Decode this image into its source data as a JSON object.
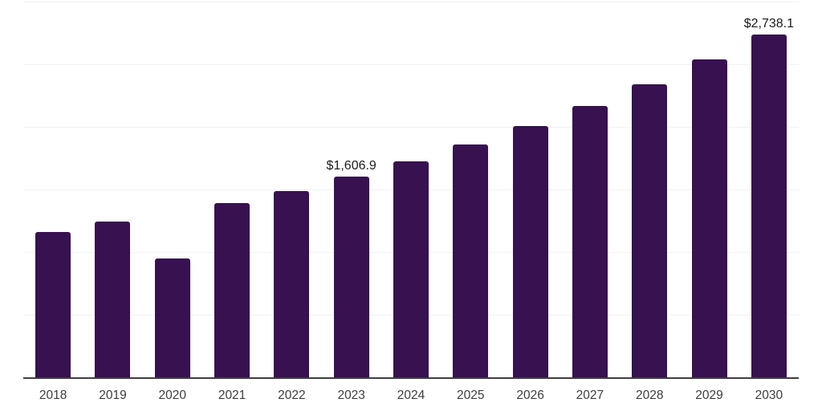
{
  "chart": {
    "background": "#FFFFFF",
    "bar_color": "#371150",
    "axis_color": "#3F3F3F",
    "gridline_color": "#F2F2F2",
    "tick_label_color": "#3D3D3D",
    "value_label_color": "#1C1C1C"
  },
  "chart_data": {
    "type": "bar",
    "title": "",
    "xlabel": "",
    "ylabel": "",
    "categories": [
      "2018",
      "2019",
      "2020",
      "2021",
      "2022",
      "2023",
      "2024",
      "2025",
      "2026",
      "2027",
      "2028",
      "2029",
      "2030"
    ],
    "values": [
      1160,
      1245,
      950,
      1395,
      1490,
      1606.9,
      1725,
      1860,
      2010,
      2170,
      2340,
      2540,
      2738.1
    ],
    "data_labels": [
      "",
      "",
      "",
      "",
      "",
      "$1,606.9",
      "",
      "",
      "",
      "",
      "",
      "",
      "$2,738.1"
    ],
    "ylim": [
      0,
      3000
    ],
    "gridline_step": 500,
    "grid": true,
    "legend_position": "none",
    "y_axis_labels_visible": false,
    "value_label_prefix": "$"
  }
}
